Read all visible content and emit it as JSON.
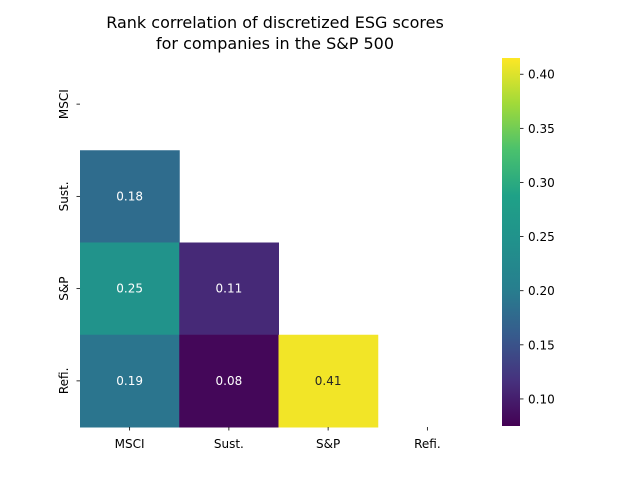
{
  "chart_data": {
    "type": "heatmap",
    "title_lines": [
      "Rank correlation of discretized ESG scores",
      "for companies in the S&P 500"
    ],
    "xlabel": "",
    "ylabel": "",
    "categories": [
      "MSCI",
      "Sust.",
      "S&P",
      "Refi."
    ],
    "matrix": [
      [
        null,
        null,
        null,
        null
      ],
      [
        0.18,
        null,
        null,
        null
      ],
      [
        0.25,
        0.11,
        null,
        null
      ],
      [
        0.19,
        0.08,
        0.41,
        null
      ]
    ],
    "mask": "upper-triangle-and-diagonal",
    "colormap": "viridis",
    "vmin": 0.075,
    "vmax": 0.415,
    "colorbar": {
      "ticks": [
        0.1,
        0.15,
        0.2,
        0.25,
        0.3,
        0.35,
        0.4
      ],
      "tick_labels": [
        "0.10",
        "0.15",
        "0.20",
        "0.25",
        "0.30",
        "0.35",
        "0.40"
      ]
    },
    "annot_dark_text_color": "#262626",
    "annot_light_text_color": "#ffffff"
  }
}
